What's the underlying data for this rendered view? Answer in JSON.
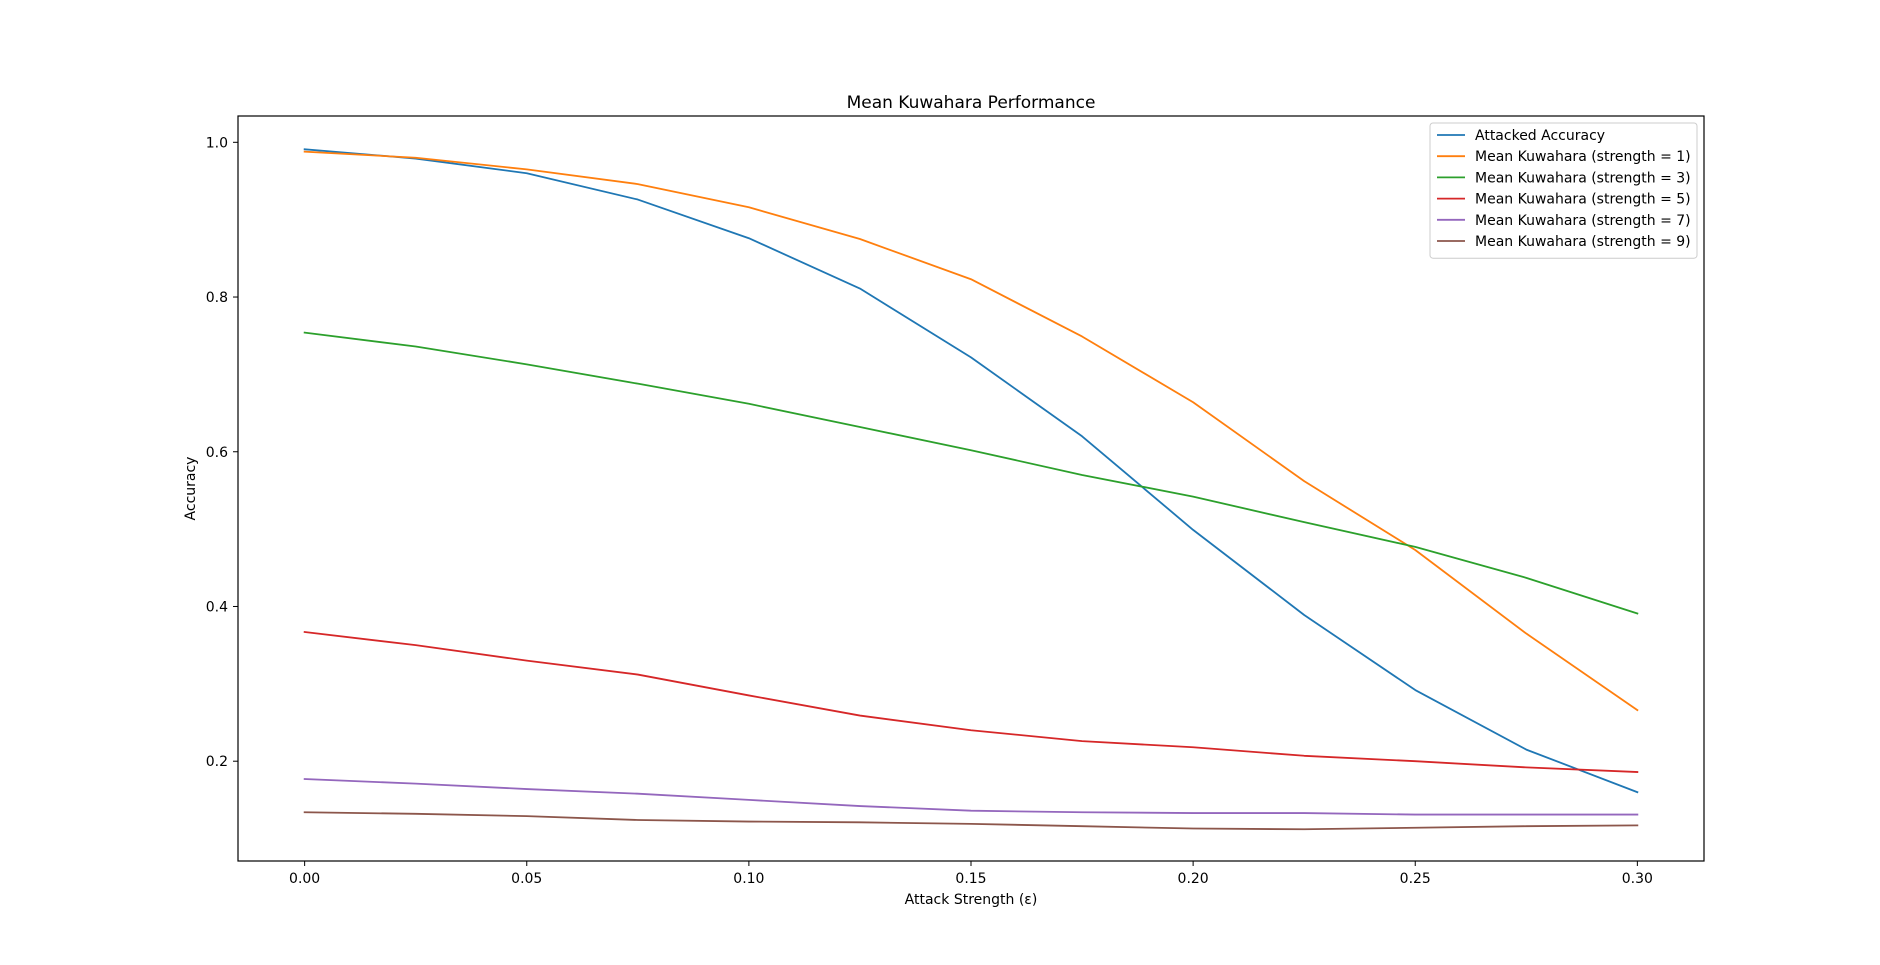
{
  "chart_data": {
    "type": "line",
    "title": "Mean Kuwahara Performance",
    "xlabel": "Attack Strength (ε)",
    "ylabel": "Accuracy",
    "xlim": [
      -0.015,
      0.315
    ],
    "ylim": [
      0.071,
      1.034
    ],
    "xticks": [
      0.0,
      0.05,
      0.1,
      0.15,
      0.2,
      0.25,
      0.3
    ],
    "xtick_labels": [
      "0.00",
      "0.05",
      "0.10",
      "0.15",
      "0.20",
      "0.25",
      "0.30"
    ],
    "yticks": [
      0.2,
      0.4,
      0.6,
      0.8,
      1.0
    ],
    "ytick_labels": [
      "0.2",
      "0.4",
      "0.6",
      "0.8",
      "1.0"
    ],
    "grid": false,
    "legend_position": "top-right",
    "x": [
      0.0,
      0.025,
      0.05,
      0.075,
      0.1,
      0.125,
      0.15,
      0.175,
      0.2,
      0.225,
      0.25,
      0.275,
      0.3
    ],
    "series": [
      {
        "name": "Attacked Accuracy",
        "color": "#1f77b4",
        "values": [
          0.991,
          0.979,
          0.96,
          0.926,
          0.876,
          0.811,
          0.722,
          0.62,
          0.499,
          0.389,
          0.292,
          0.215,
          0.16
        ]
      },
      {
        "name": "Mean Kuwahara (strength = 1)",
        "color": "#ff7f0e",
        "values": [
          0.988,
          0.98,
          0.965,
          0.946,
          0.916,
          0.875,
          0.823,
          0.749,
          0.664,
          0.562,
          0.473,
          0.365,
          0.266
        ]
      },
      {
        "name": "Mean Kuwahara (strength = 3)",
        "color": "#2ca02c",
        "values": [
          0.754,
          0.736,
          0.713,
          0.688,
          0.662,
          0.632,
          0.602,
          0.57,
          0.542,
          0.509,
          0.477,
          0.437,
          0.391
        ]
      },
      {
        "name": "Mean Kuwahara (strength = 5)",
        "color": "#d62728",
        "values": [
          0.367,
          0.35,
          0.33,
          0.312,
          0.285,
          0.259,
          0.24,
          0.226,
          0.218,
          0.207,
          0.2,
          0.192,
          0.186
        ]
      },
      {
        "name": "Mean Kuwahara (strength = 7)",
        "color": "#9467bd",
        "values": [
          0.177,
          0.171,
          0.164,
          0.158,
          0.15,
          0.142,
          0.136,
          0.134,
          0.133,
          0.133,
          0.131,
          0.131,
          0.131
        ]
      },
      {
        "name": "Mean Kuwahara (strength = 9)",
        "color": "#8c564b",
        "values": [
          0.134,
          0.132,
          0.129,
          0.124,
          0.122,
          0.121,
          0.119,
          0.116,
          0.113,
          0.112,
          0.114,
          0.116,
          0.117
        ]
      }
    ]
  }
}
